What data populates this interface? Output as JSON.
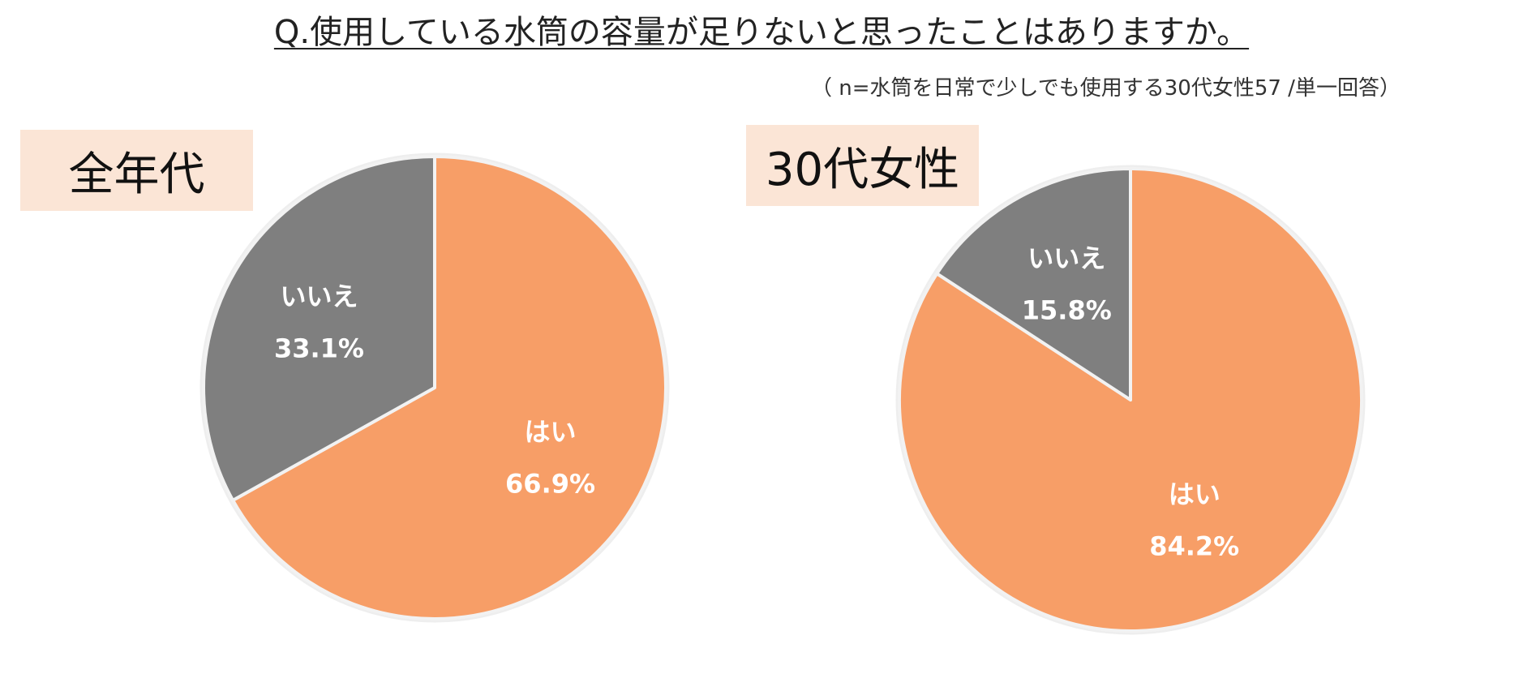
{
  "title": "Q.使用している水筒の容量が足りないと思ったことはありますか。",
  "subtitle": "（ n=水筒を日常で少しでも使用する30代女性57 /単一回答）",
  "colors": {
    "yes": "#f79e67",
    "no": "#7f7f7f",
    "label_box": "#fbe5d6"
  },
  "chart_data": [
    {
      "type": "pie",
      "title": "全年代",
      "slices": [
        {
          "label": "はい",
          "value": 66.9,
          "display": "66.9%"
        },
        {
          "label": "いいえ",
          "value": 33.1,
          "display": "33.1%"
        }
      ]
    },
    {
      "type": "pie",
      "title": "30代女性",
      "slices": [
        {
          "label": "はい",
          "value": 84.2,
          "display": "84.2%"
        },
        {
          "label": "いいえ",
          "value": 15.8,
          "display": "15.8%"
        }
      ]
    }
  ]
}
